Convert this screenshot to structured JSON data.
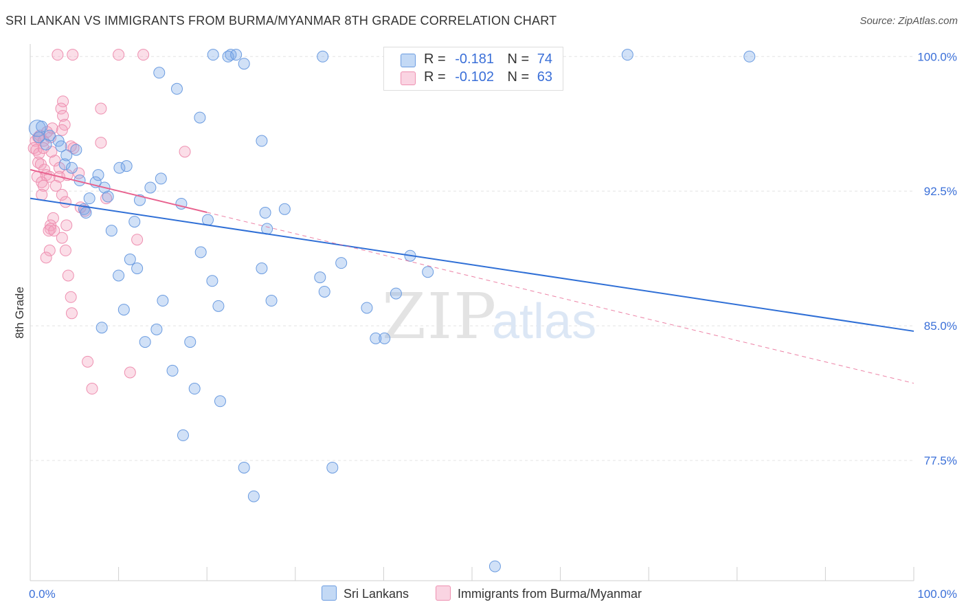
{
  "title": "SRI LANKAN VS IMMIGRANTS FROM BURMA/MYANMAR 8TH GRADE CORRELATION CHART",
  "source": "Source: ZipAtlas.com",
  "watermark": {
    "zip": "ZIP",
    "atlas": "atlas"
  },
  "legend": {
    "rows": [
      {
        "r_label": "R =",
        "r_value": "-0.181",
        "n_label": "N =",
        "n_value": "74"
      },
      {
        "r_label": "R =",
        "r_value": "-0.102",
        "n_label": "N =",
        "n_value": "63"
      }
    ]
  },
  "bottom_legend": {
    "series1": "Sri Lankans",
    "series2": "Immigrants from Burma/Myanmar"
  },
  "colors": {
    "blue_fill": "rgba(122,170,232,0.35)",
    "blue_stroke": "#6a9be0",
    "blue_line": "#2f6fd6",
    "pink_fill": "rgba(244,160,190,0.35)",
    "pink_stroke": "#ee8fb0",
    "pink_line": "#e8628f",
    "axis_text": "#3a6fd8",
    "grid": "#e4e4e4"
  },
  "chart_data": {
    "type": "scatter",
    "title": "SRI LANKAN VS IMMIGRANTS FROM BURMA/MYANMAR 8TH GRADE CORRELATION CHART",
    "xlabel": "",
    "ylabel": "8th Grade",
    "xlim": [
      0,
      100
    ],
    "ylim": [
      70.8,
      100.7
    ],
    "x_tick_labels": [
      "0.0%",
      "100.0%"
    ],
    "y_ticks": [
      77.5,
      85.0,
      92.5,
      100.0
    ],
    "y_tick_labels": [
      "77.5%",
      "85.0%",
      "92.5%",
      "100.0%"
    ],
    "series": [
      {
        "name": "Sri Lankans",
        "r": -0.181,
        "n": 74,
        "trend": {
          "x": [
            0,
            100
          ],
          "y": [
            92.1,
            84.7
          ]
        },
        "points": [
          [
            0.8,
            96.0
          ],
          [
            1.3,
            96.1
          ],
          [
            1.0,
            95.5
          ],
          [
            2.2,
            95.6
          ],
          [
            1.8,
            95.1
          ],
          [
            3.2,
            95.3
          ],
          [
            3.5,
            95.0
          ],
          [
            5.2,
            94.8
          ],
          [
            4.1,
            94.5
          ],
          [
            3.9,
            94.0
          ],
          [
            4.7,
            93.8
          ],
          [
            7.7,
            93.4
          ],
          [
            5.6,
            93.1
          ],
          [
            7.4,
            93.0
          ],
          [
            8.4,
            92.7
          ],
          [
            14.8,
            93.2
          ],
          [
            10.1,
            93.8
          ],
          [
            10.9,
            93.9
          ],
          [
            13.6,
            92.7
          ],
          [
            6.7,
            92.1
          ],
          [
            8.8,
            92.2
          ],
          [
            12.4,
            92.0
          ],
          [
            17.1,
            91.8
          ],
          [
            6.1,
            91.5
          ],
          [
            6.3,
            91.3
          ],
          [
            11.8,
            90.8
          ],
          [
            20.1,
            90.9
          ],
          [
            26.6,
            91.3
          ],
          [
            28.8,
            91.5
          ],
          [
            9.2,
            90.3
          ],
          [
            26.8,
            90.4
          ],
          [
            19.3,
            89.1
          ],
          [
            11.3,
            88.7
          ],
          [
            12.1,
            88.2
          ],
          [
            26.2,
            88.2
          ],
          [
            32.8,
            87.7
          ],
          [
            35.2,
            88.5
          ],
          [
            43.0,
            88.9
          ],
          [
            45.0,
            88.0
          ],
          [
            10.0,
            87.8
          ],
          [
            20.6,
            87.5
          ],
          [
            33.3,
            86.9
          ],
          [
            41.4,
            86.8
          ],
          [
            15.0,
            86.4
          ],
          [
            27.3,
            86.4
          ],
          [
            10.6,
            85.9
          ],
          [
            21.3,
            86.1
          ],
          [
            38.1,
            86.0
          ],
          [
            8.1,
            84.9
          ],
          [
            14.3,
            84.8
          ],
          [
            13.0,
            84.1
          ],
          [
            18.1,
            84.1
          ],
          [
            39.1,
            84.3
          ],
          [
            40.1,
            84.3
          ],
          [
            16.1,
            82.5
          ],
          [
            18.6,
            81.5
          ],
          [
            21.5,
            80.8
          ],
          [
            17.3,
            78.9
          ],
          [
            24.2,
            77.1
          ],
          [
            34.2,
            77.1
          ],
          [
            25.3,
            75.5
          ],
          [
            52.6,
            71.6
          ],
          [
            20.7,
            100.1
          ],
          [
            22.7,
            100.1
          ],
          [
            22.4,
            100.0
          ],
          [
            23.3,
            100.1
          ],
          [
            24.2,
            99.6
          ],
          [
            33.1,
            100.0
          ],
          [
            67.6,
            100.1
          ],
          [
            81.4,
            100.0
          ],
          [
            14.6,
            99.1
          ],
          [
            16.6,
            98.2
          ],
          [
            19.2,
            96.6
          ],
          [
            26.2,
            95.3
          ]
        ]
      },
      {
        "name": "Immigrants from Burma/Myanmar",
        "r": -0.102,
        "n": 63,
        "trend": {
          "x": [
            0,
            100
          ],
          "y": [
            93.7,
            81.8
          ]
        },
        "trend_solid_to_x": 20,
        "points": [
          [
            3.1,
            100.1
          ],
          [
            4.8,
            100.1
          ],
          [
            10.0,
            100.1
          ],
          [
            12.8,
            100.1
          ],
          [
            3.7,
            97.5
          ],
          [
            3.5,
            97.1
          ],
          [
            3.7,
            96.7
          ],
          [
            8.0,
            97.1
          ],
          [
            3.9,
            96.2
          ],
          [
            3.6,
            95.9
          ],
          [
            2.5,
            96.0
          ],
          [
            1.1,
            95.6
          ],
          [
            2.3,
            95.5
          ],
          [
            0.6,
            95.3
          ],
          [
            1.5,
            95.3
          ],
          [
            0.4,
            94.9
          ],
          [
            0.7,
            94.8
          ],
          [
            1.0,
            94.6
          ],
          [
            1.5,
            94.9
          ],
          [
            4.6,
            95.0
          ],
          [
            4.9,
            94.9
          ],
          [
            8.0,
            95.2
          ],
          [
            17.5,
            94.7
          ],
          [
            0.9,
            94.1
          ],
          [
            1.2,
            94.0
          ],
          [
            1.6,
            93.7
          ],
          [
            2.8,
            94.2
          ],
          [
            3.3,
            93.8
          ],
          [
            0.8,
            93.3
          ],
          [
            1.8,
            93.4
          ],
          [
            2.2,
            93.3
          ],
          [
            3.3,
            93.3
          ],
          [
            4.2,
            93.4
          ],
          [
            5.5,
            93.5
          ],
          [
            1.3,
            93.0
          ],
          [
            1.5,
            92.8
          ],
          [
            2.9,
            92.8
          ],
          [
            1.3,
            92.3
          ],
          [
            3.6,
            92.3
          ],
          [
            4.0,
            91.9
          ],
          [
            5.7,
            91.6
          ],
          [
            6.2,
            91.4
          ],
          [
            8.6,
            92.1
          ],
          [
            2.6,
            91.0
          ],
          [
            2.3,
            90.6
          ],
          [
            4.1,
            90.6
          ],
          [
            2.3,
            90.4
          ],
          [
            2.1,
            90.3
          ],
          [
            2.7,
            90.3
          ],
          [
            3.6,
            89.9
          ],
          [
            12.1,
            89.8
          ],
          [
            2.2,
            89.2
          ],
          [
            4.0,
            89.2
          ],
          [
            1.8,
            88.8
          ],
          [
            4.3,
            87.8
          ],
          [
            4.6,
            86.6
          ],
          [
            4.7,
            85.7
          ],
          [
            6.5,
            83.0
          ],
          [
            11.3,
            82.4
          ],
          [
            7.0,
            81.5
          ],
          [
            1.9,
            95.8
          ],
          [
            0.9,
            95.5
          ],
          [
            2.4,
            94.7
          ]
        ]
      }
    ]
  }
}
